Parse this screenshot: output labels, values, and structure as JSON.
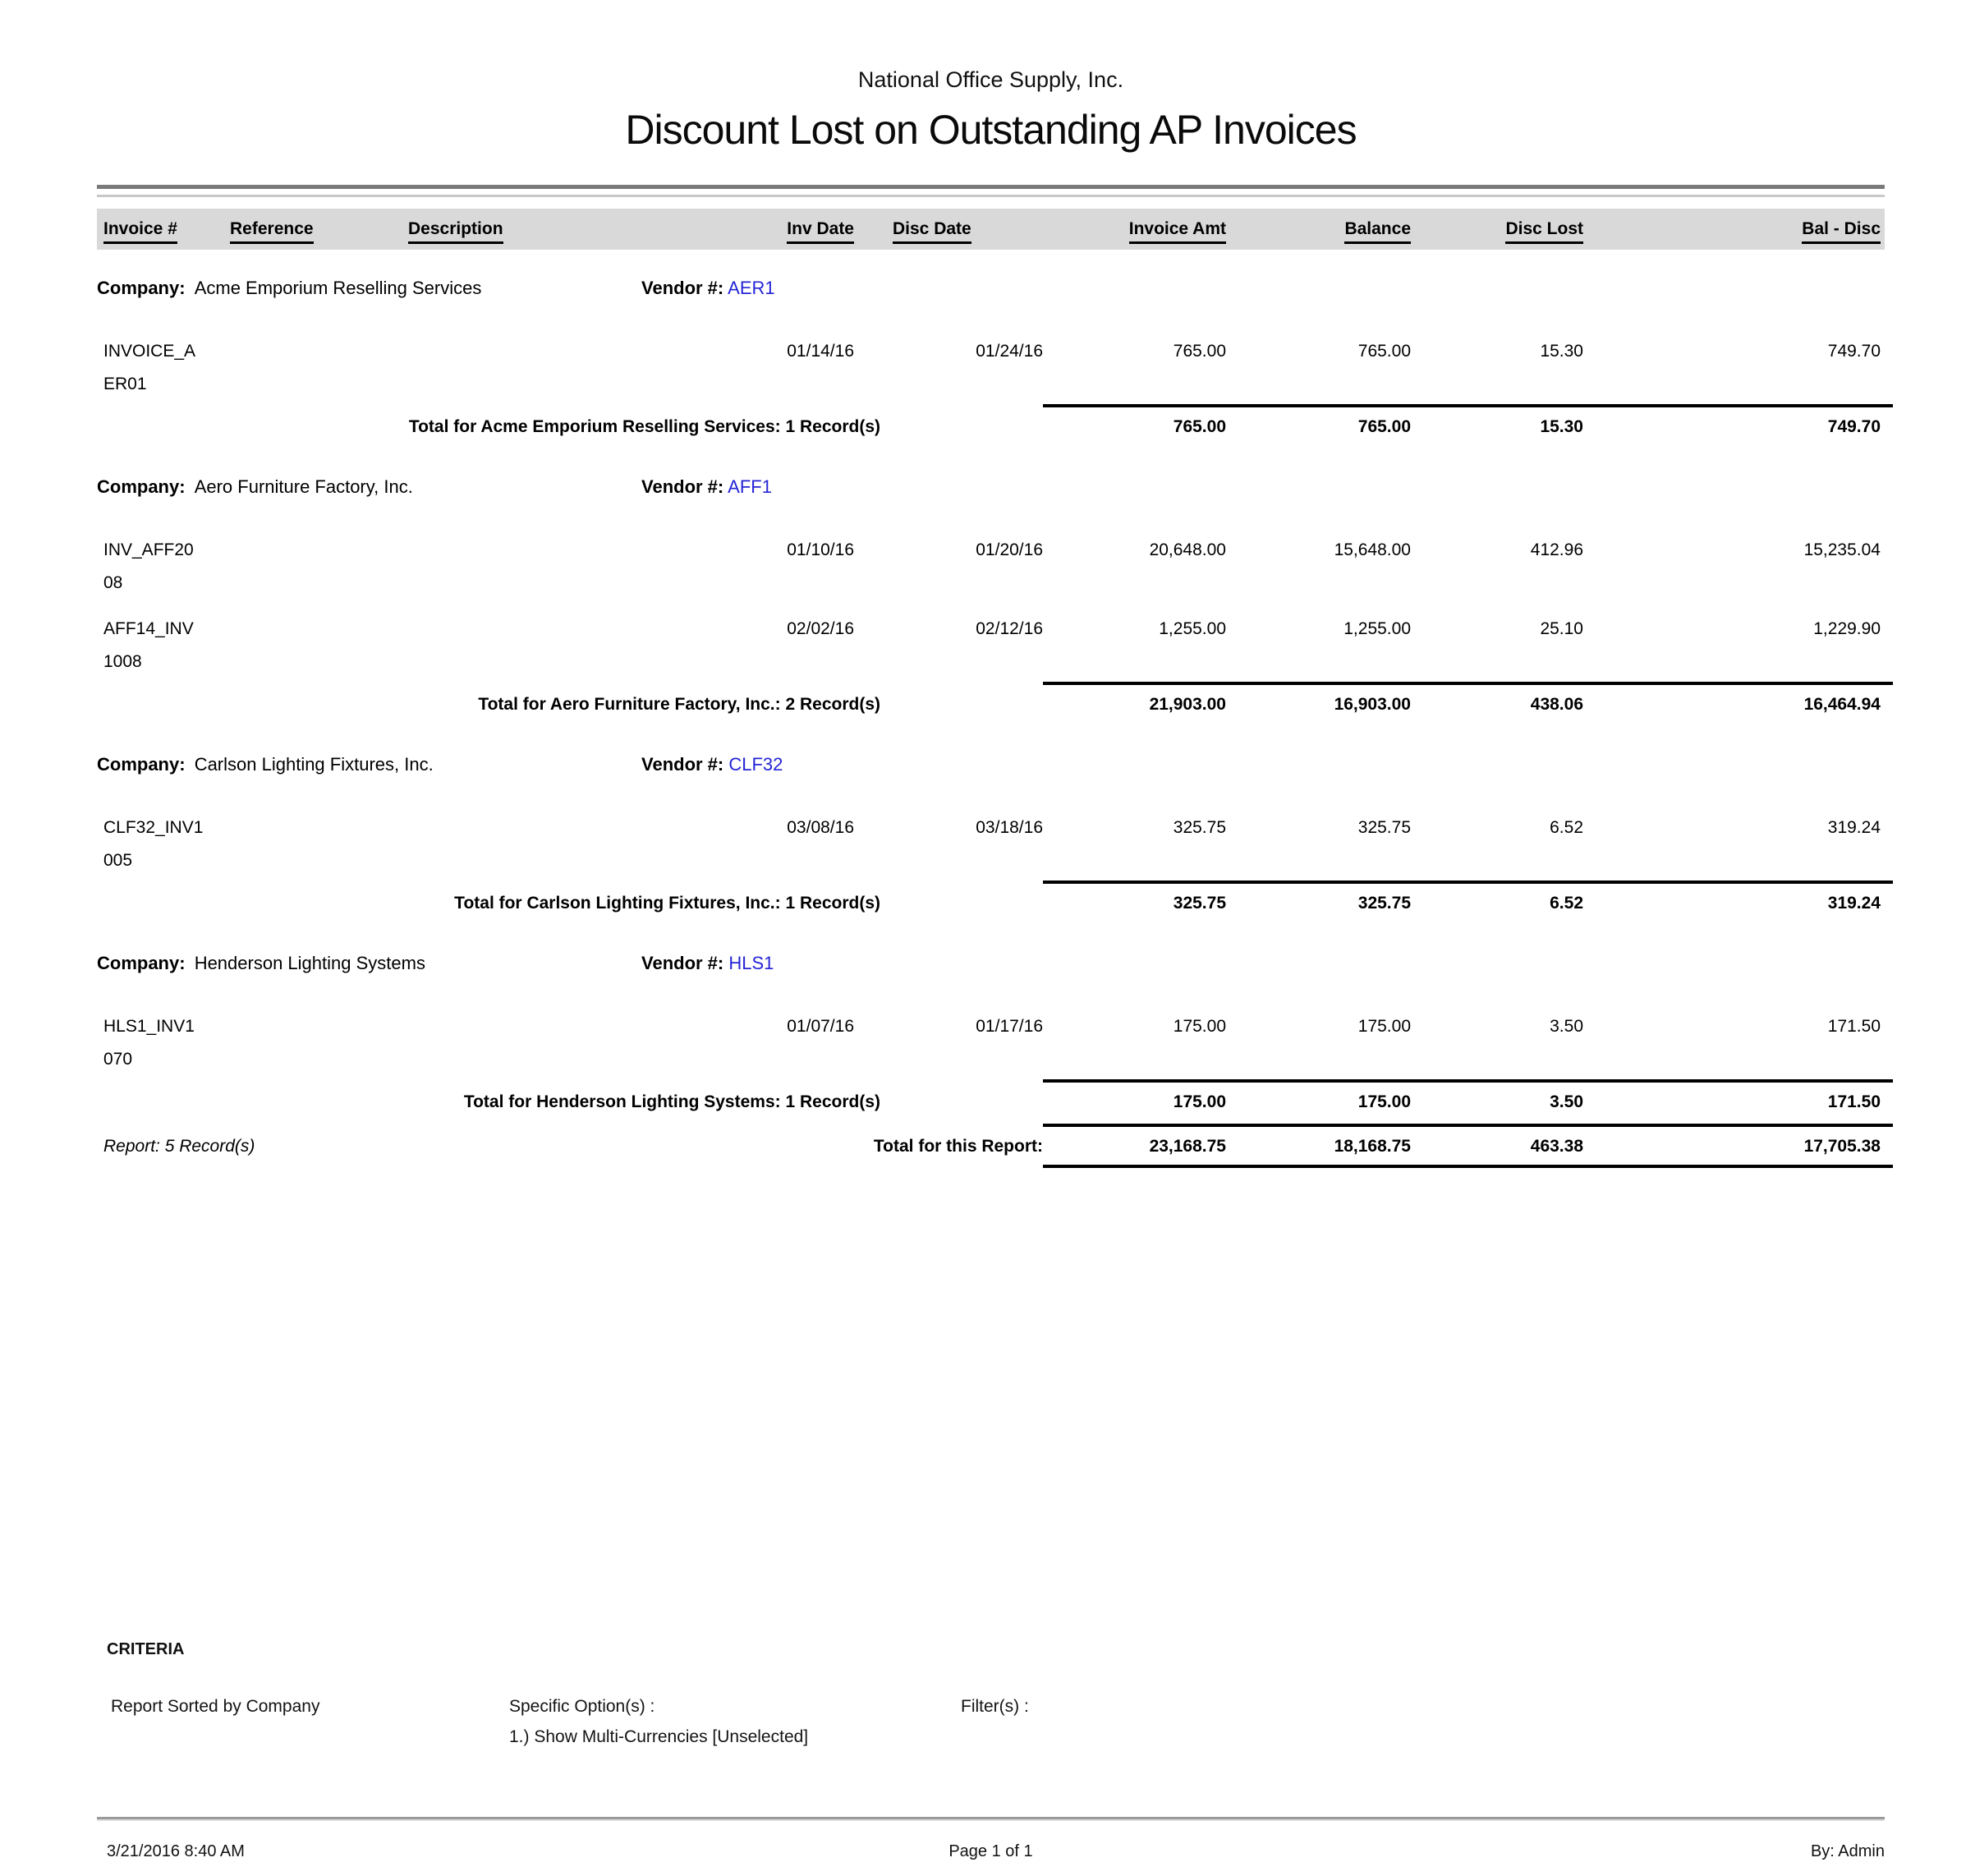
{
  "report": {
    "org": "National Office Supply, Inc.",
    "title": "Discount Lost on Outstanding AP Invoices",
    "columns": [
      "Invoice #",
      "Reference",
      "Description",
      "Inv Date",
      "Disc Date",
      "Invoice Amt",
      "Balance",
      "Disc Lost",
      "Bal - Disc"
    ],
    "labels": {
      "company": "Company:",
      "vendor": "Vendor #:"
    },
    "groups": [
      {
        "company": "Acme Emporium Reselling Services",
        "vendor": "AER1",
        "rows": [
          {
            "invoice_lines": [
              "INVOICE_A",
              "ER01"
            ],
            "inv_date": "01/14/16",
            "disc_date": "01/24/16",
            "invoice_amt": "765.00",
            "balance": "765.00",
            "disc_lost": "15.30",
            "bal_disc": "749.70"
          }
        ],
        "total_label": "Total for Acme Emporium Reselling Services: 1 Record(s)",
        "total": {
          "invoice_amt": "765.00",
          "balance": "765.00",
          "disc_lost": "15.30",
          "bal_disc": "749.70"
        }
      },
      {
        "company": "Aero Furniture Factory, Inc.",
        "vendor": "AFF1",
        "rows": [
          {
            "invoice_lines": [
              "INV_AFF20",
              "08"
            ],
            "inv_date": "01/10/16",
            "disc_date": "01/20/16",
            "invoice_amt": "20,648.00",
            "balance": "15,648.00",
            "disc_lost": "412.96",
            "bal_disc": "15,235.04"
          },
          {
            "invoice_lines": [
              "AFF14_INV",
              "1008"
            ],
            "inv_date": "02/02/16",
            "disc_date": "02/12/16",
            "invoice_amt": "1,255.00",
            "balance": "1,255.00",
            "disc_lost": "25.10",
            "bal_disc": "1,229.90"
          }
        ],
        "total_label": "Total for Aero Furniture Factory, Inc.: 2 Record(s)",
        "total": {
          "invoice_amt": "21,903.00",
          "balance": "16,903.00",
          "disc_lost": "438.06",
          "bal_disc": "16,464.94"
        }
      },
      {
        "company": "Carlson Lighting Fixtures, Inc.",
        "vendor": "CLF32",
        "rows": [
          {
            "invoice_lines": [
              "CLF32_INV1",
              "005"
            ],
            "inv_date": "03/08/16",
            "disc_date": "03/18/16",
            "invoice_amt": "325.75",
            "balance": "325.75",
            "disc_lost": "6.52",
            "bal_disc": "319.24"
          }
        ],
        "total_label": "Total for Carlson Lighting Fixtures, Inc.: 1 Record(s)",
        "total": {
          "invoice_amt": "325.75",
          "balance": "325.75",
          "disc_lost": "6.52",
          "bal_disc": "319.24"
        }
      },
      {
        "company": "Henderson Lighting Systems",
        "vendor": "HLS1",
        "rows": [
          {
            "invoice_lines": [
              "HLS1_INV1",
              "070"
            ],
            "inv_date": "01/07/16",
            "disc_date": "01/17/16",
            "invoice_amt": "175.00",
            "balance": "175.00",
            "disc_lost": "3.50",
            "bal_disc": "171.50"
          }
        ],
        "total_label": "Total for Henderson Lighting Systems: 1 Record(s)",
        "total": {
          "invoice_amt": "175.00",
          "balance": "175.00",
          "disc_lost": "3.50",
          "bal_disc": "171.50"
        }
      }
    ],
    "report_records_label": "Report: 5 Record(s)",
    "report_total_label": "Total for this Report:",
    "report_total": {
      "invoice_amt": "23,168.75",
      "balance": "18,168.75",
      "disc_lost": "463.38",
      "bal_disc": "17,705.38"
    },
    "criteria": {
      "heading": "CRITERIA",
      "sorted_by": "Report Sorted by Company",
      "specific_options_label": "Specific Option(s) :",
      "specific_option_1": "1.) Show Multi-Currencies [Unselected]",
      "filters_label": "Filter(s) :"
    },
    "footer": {
      "datetime": "3/21/2016 8:40 AM",
      "page": "Page 1 of 1",
      "by": "By: Admin"
    }
  }
}
